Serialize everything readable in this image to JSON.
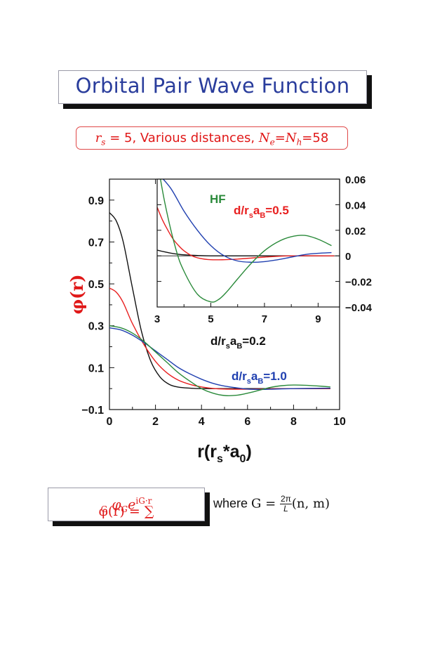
{
  "title": "Orbital Pair Wave Function",
  "subtitle": {
    "rs": "r",
    "rs_sub": "s",
    "rs_eq": " = 5, Various distances, ",
    "ne": "N",
    "ne_sub": "e",
    "eq": "=",
    "nh": "N",
    "nh_sub": "h",
    "count": "=58"
  },
  "formula": {
    "lhs": "φ(r) = ∑",
    "sum_sub": "G",
    "coef": " φ",
    "coef_sub": "G",
    "exp_base": "e",
    "exp": "iG·r"
  },
  "where": {
    "word": "where ",
    "lhs": "G = ",
    "frac_num": "2π",
    "frac_den": "L",
    "rhs": "(n, m)"
  },
  "colors": {
    "black_series": "#111111",
    "red_series": "#e82020",
    "blue_series": "#2040b0",
    "green_series": "#2a8a3a",
    "title": "#2a3d9c",
    "accent_red": "#e01818"
  },
  "chart_data": [
    {
      "type": "line",
      "xlabel": "r(r_s*a_0)",
      "ylabel": "φ(r)",
      "xlim": [
        0,
        10
      ],
      "ylim": [
        -0.1,
        1.0
      ],
      "xticks": [
        "0",
        "2",
        "4",
        "6",
        "8",
        "10"
      ],
      "yticks": [
        "−0.1",
        "0.1",
        "0.3",
        "0.5",
        "0.7",
        "0.9"
      ],
      "annotations": [
        "d/r_sa_B=0.2",
        "d/r_sa_B=1.0"
      ],
      "series": [
        {
          "color": "black",
          "x": [
            0,
            0.3,
            0.6,
            1.0,
            1.4,
            1.8,
            2.2,
            2.6,
            3.0,
            3.5,
            4.0,
            5.0,
            6.0,
            8.0,
            9.6
          ],
          "y": [
            0.84,
            0.8,
            0.7,
            0.48,
            0.27,
            0.13,
            0.055,
            0.02,
            0.007,
            0.002,
            0.0,
            0.0,
            0.0,
            0.0,
            0.0
          ]
        },
        {
          "color": "red",
          "x": [
            0,
            0.3,
            0.6,
            1.0,
            1.5,
            2.0,
            2.5,
            3.0,
            3.5,
            4.0,
            4.5,
            5.0,
            6.0,
            7.0,
            8.0,
            9.6
          ],
          "y": [
            0.48,
            0.46,
            0.41,
            0.31,
            0.21,
            0.13,
            0.075,
            0.04,
            0.02,
            0.008,
            0.001,
            -0.002,
            -0.003,
            -0.001,
            0.0,
            0.0
          ]
        },
        {
          "color": "blue",
          "x": [
            0,
            0.5,
            1.0,
            1.5,
            2.0,
            2.5,
            3.0,
            3.5,
            4.0,
            4.5,
            5.0,
            5.5,
            6.0,
            6.5,
            7.0,
            8.0,
            9.6
          ],
          "y": [
            0.29,
            0.28,
            0.255,
            0.22,
            0.18,
            0.14,
            0.1,
            0.07,
            0.045,
            0.025,
            0.012,
            0.004,
            -0.002,
            -0.004,
            -0.003,
            0.0,
            0.002
          ]
        },
        {
          "color": "green",
          "x": [
            0,
            0.5,
            1.0,
            1.5,
            2.0,
            2.5,
            3.0,
            3.5,
            4.0,
            4.5,
            5.0,
            5.5,
            6.0,
            6.5,
            7.0,
            7.5,
            8.0,
            8.5,
            9.0,
            9.6
          ],
          "y": [
            0.3,
            0.29,
            0.265,
            0.225,
            0.175,
            0.125,
            0.075,
            0.035,
            0.0,
            -0.022,
            -0.033,
            -0.032,
            -0.022,
            -0.008,
            0.006,
            0.014,
            0.017,
            0.016,
            0.013,
            0.008
          ]
        }
      ]
    },
    {
      "type": "line",
      "xlim": [
        3,
        9.8
      ],
      "ylim": [
        -0.04,
        0.06
      ],
      "xticks": [
        "3",
        "5",
        "7",
        "9"
      ],
      "yticks": [
        "0.06",
        "0.04",
        "0.02",
        "0",
        "−0.02",
        "−0.04"
      ],
      "annotations": [
        "HF",
        "d/r_sa_B=0.5"
      ],
      "series": [
        {
          "color": "black",
          "x": [
            3.0,
            3.3,
            3.6,
            4.0,
            4.5,
            5.0,
            6.0,
            8.0,
            9.6
          ],
          "y": [
            0.0045,
            0.003,
            0.0018,
            0.0008,
            0.0003,
            0.0,
            0.0,
            0.0,
            0.0
          ]
        },
        {
          "color": "red",
          "x": [
            3.0,
            3.2,
            3.4,
            3.6,
            3.8,
            4.0,
            4.3,
            4.6,
            5.0,
            5.5,
            6.0,
            7.0,
            8.0,
            9.6
          ],
          "y": [
            0.038,
            0.028,
            0.02,
            0.013,
            0.008,
            0.004,
            0.0,
            -0.002,
            -0.003,
            -0.003,
            -0.0025,
            -0.001,
            0.0,
            0.0
          ]
        },
        {
          "color": "blue",
          "x": [
            3.0,
            3.5,
            4.0,
            4.5,
            5.0,
            5.5,
            6.0,
            6.5,
            7.0,
            7.5,
            8.0,
            8.5,
            9.0,
            9.5
          ],
          "y": [
            0.065,
            0.053,
            0.035,
            0.02,
            0.008,
            0.0,
            -0.004,
            -0.005,
            -0.0045,
            -0.003,
            -0.001,
            0.001,
            0.002,
            0.0025
          ]
        },
        {
          "color": "green",
          "x": [
            3.0,
            3.3,
            3.7,
            4.0,
            4.5,
            5.0,
            5.3,
            5.6,
            6.0,
            6.5,
            7.0,
            7.5,
            8.0,
            8.5,
            9.0,
            9.5
          ],
          "y": [
            0.075,
            0.04,
            0.005,
            -0.012,
            -0.03,
            -0.036,
            -0.034,
            -0.028,
            -0.018,
            -0.006,
            0.004,
            0.011,
            0.015,
            0.016,
            0.013,
            0.008
          ]
        }
      ]
    }
  ]
}
